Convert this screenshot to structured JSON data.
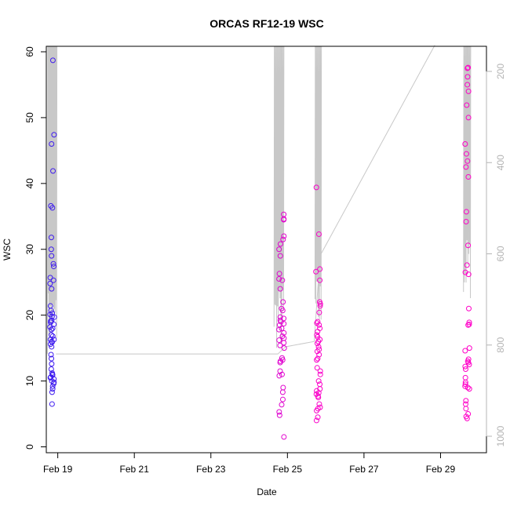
{
  "chart_data": {
    "type": "scatter",
    "title": "ORCAS RF12-19 WSC",
    "xlabel": "Date",
    "ylabel": "WSC",
    "x_ticks": [
      "Feb 19",
      "Feb 21",
      "Feb 23",
      "Feb 25",
      "Feb 27",
      "Feb 29"
    ],
    "x_tick_values": [
      19,
      21,
      23,
      25,
      27,
      29
    ],
    "xlim": [
      18.7,
      30.2
    ],
    "ylim": [
      0,
      60
    ],
    "y_ticks": [
      0,
      10,
      20,
      30,
      40,
      50,
      60
    ],
    "y2_ticks": [
      200,
      400,
      600,
      800,
      1000
    ],
    "y2lim": [
      1020,
      140
    ],
    "grid": false,
    "legend": "none",
    "colors": {
      "point_start": "#3a1cf0",
      "point_end": "#ff00c8",
      "track": "#c8c8c8",
      "axis": "#000000",
      "axis2": "#b4b4b4"
    },
    "flights": [
      {
        "center": 18.85,
        "width": 0.12,
        "wsc": [
          20.7,
          20.3,
          19.8,
          19.2,
          18.9,
          18.6,
          18.2,
          17.8,
          17.0,
          16.8,
          16.3,
          15.9,
          15.6,
          15.2,
          14.0,
          13.4,
          12.6,
          11.8,
          11.2,
          10.9,
          10.6,
          10.3,
          10.0,
          9.6,
          9.2,
          8.8,
          8.3,
          6.5,
          58.7,
          47.4,
          46.0,
          41.9,
          36.6,
          36.3,
          31.8,
          30.0,
          29.0,
          27.8,
          27.4,
          25.7,
          25.3,
          24.8,
          24.0,
          21.4,
          20.1,
          19.7,
          19.1,
          18.0,
          16.3,
          16.0,
          11.0,
          10.5,
          9.8
        ]
      },
      {
        "center": 24.85,
        "width": 0.14,
        "wsc": [
          35.3,
          34.6,
          34.5,
          32.0,
          31.5,
          30.8,
          30.0,
          29.0,
          26.3,
          25.5,
          25.3,
          24.0,
          22.0,
          21.0,
          20.7,
          19.7,
          19.5,
          19.2,
          19.0,
          18.7,
          18.5,
          18.0,
          17.8,
          17.3,
          16.8,
          16.5,
          16.2,
          15.8,
          15.4,
          15.0,
          13.5,
          13.2,
          13.0,
          12.8,
          11.5,
          11.0,
          10.8,
          9.0,
          8.3,
          7.2,
          6.4,
          5.3,
          4.8,
          1.5
        ]
      },
      {
        "center": 25.8,
        "width": 0.12,
        "wsc": [
          39.4,
          32.3,
          27.0,
          26.6,
          25.3,
          22.0,
          21.7,
          21.4,
          20.4,
          19.0,
          18.8,
          18.5,
          18.0,
          17.5,
          17.0,
          16.7,
          16.3,
          16.0,
          15.7,
          15.2,
          14.8,
          14.5,
          14.0,
          13.4,
          13.2,
          12.0,
          11.5,
          11.0,
          10.0,
          9.5,
          8.8,
          8.5,
          8.2,
          8.0,
          7.7,
          7.5,
          6.5,
          6.0,
          5.8,
          5.5,
          4.5,
          4.0
        ]
      },
      {
        "center": 29.7,
        "width": 0.12,
        "wsc": [
          57.6,
          57.5,
          56.2,
          55.0,
          54.0,
          51.9,
          50.0,
          46.0,
          44.5,
          43.4,
          42.5,
          41.0,
          35.7,
          34.2,
          30.6,
          27.6,
          26.5,
          26.2,
          21.0,
          18.9,
          18.6,
          18.5,
          15.0,
          14.6,
          13.3,
          13.0,
          12.8,
          12.5,
          12.2,
          11.8,
          10.5,
          9.8,
          9.5,
          9.2,
          9.0,
          8.8,
          7.0,
          6.5,
          5.8,
          5.0,
          4.6,
          4.3
        ]
      }
    ],
    "track": {
      "baseline": [
        [
          18.95,
          14.1
        ],
        [
          24.75,
          14.1
        ],
        [
          24.95,
          15.2
        ],
        [
          25.7,
          16.0
        ],
        [
          25.85,
          29.0
        ],
        [
          28.85,
          61.0
        ]
      ],
      "spike_bursts": [
        {
          "x0": 18.73,
          "x1": 18.97,
          "lines": 14,
          "low": 14.1
        },
        {
          "x0": 24.65,
          "x1": 24.9,
          "lines": 12,
          "low": 14.5
        },
        {
          "x0": 25.72,
          "x1": 25.88,
          "lines": 8,
          "low": 16.0
        },
        {
          "x0": 29.6,
          "x1": 29.78,
          "lines": 9,
          "low": 22.0
        }
      ]
    }
  }
}
